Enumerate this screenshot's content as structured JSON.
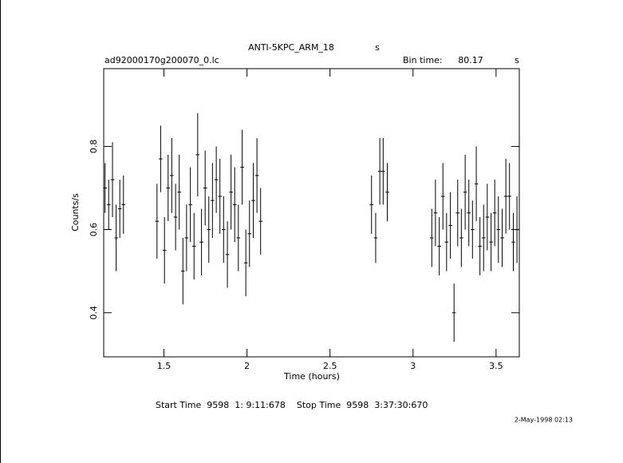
{
  "chart_data": {
    "type": "errorbar",
    "title": "ANTI-5KPC_ARM_18",
    "title_unit": "s",
    "file_name": "ad92000170g200070_0.lc",
    "bin_time_label": "Bin time:",
    "bin_time": 80.17,
    "bin_time_unit": "s",
    "x_label": "Time (hours)",
    "y_label": "Counts/s",
    "footer": "Start Time  9598  1: 9:11:678    Stop Time  9598  3:37:30:670",
    "date_stamp": "2-May-1998 02:13",
    "xlim": [
      1.137,
      3.64
    ],
    "ylim": [
      0.294,
      0.987
    ],
    "xticks": [
      1.5,
      2,
      2.5,
      3,
      3.5
    ],
    "yticks": [
      0.4,
      0.6,
      0.8
    ],
    "color": "#000000",
    "x": [
      1.145,
      1.167,
      1.19,
      1.212,
      1.234,
      1.256,
      1.458,
      1.48,
      1.503,
      1.525,
      1.547,
      1.57,
      1.592,
      1.614,
      1.636,
      1.659,
      1.681,
      1.703,
      1.726,
      1.748,
      1.77,
      1.792,
      1.815,
      1.837,
      1.859,
      1.882,
      1.904,
      1.926,
      1.948,
      1.971,
      1.993,
      2.015,
      2.038,
      2.06,
      2.082,
      2.75,
      2.775,
      2.8,
      2.82,
      2.845,
      3.113,
      3.135,
      3.158,
      3.18,
      3.202,
      3.225,
      3.247,
      3.269,
      3.291,
      3.314,
      3.336,
      3.358,
      3.381,
      3.403,
      3.425,
      3.447,
      3.47,
      3.492,
      3.514,
      3.537,
      3.559,
      3.581,
      3.604,
      3.626
    ],
    "values": [
      0.7,
      0.66,
      0.72,
      0.58,
      0.65,
      0.66,
      0.62,
      0.77,
      0.55,
      0.7,
      0.73,
      0.63,
      0.69,
      0.5,
      0.58,
      0.66,
      0.56,
      0.78,
      0.57,
      0.7,
      0.6,
      0.67,
      0.72,
      0.68,
      0.6,
      0.54,
      0.69,
      0.66,
      0.58,
      0.75,
      0.52,
      0.59,
      0.67,
      0.73,
      0.62,
      0.66,
      0.58,
      0.74,
      0.74,
      0.69,
      0.58,
      0.64,
      0.56,
      0.68,
      0.57,
      0.61,
      0.4,
      0.64,
      0.58,
      0.69,
      0.64,
      0.6,
      0.71,
      0.56,
      0.58,
      0.63,
      0.57,
      0.64,
      0.6,
      0.58,
      0.68,
      0.68,
      0.57,
      0.6
    ],
    "errors": [
      0.06,
      0.06,
      0.09,
      0.08,
      0.07,
      0.07,
      0.09,
      0.08,
      0.08,
      0.08,
      0.09,
      0.08,
      0.09,
      0.08,
      0.08,
      0.09,
      0.08,
      0.1,
      0.08,
      0.09,
      0.08,
      0.09,
      0.08,
      0.09,
      0.08,
      0.08,
      0.09,
      0.09,
      0.08,
      0.09,
      0.08,
      0.08,
      0.09,
      0.09,
      0.08,
      0.07,
      0.06,
      0.08,
      0.08,
      0.07,
      0.07,
      0.08,
      0.07,
      0.08,
      0.07,
      0.08,
      0.07,
      0.08,
      0.07,
      0.09,
      0.08,
      0.07,
      0.09,
      0.07,
      0.08,
      0.08,
      0.07,
      0.08,
      0.08,
      0.07,
      0.09,
      0.08,
      0.07,
      0.08
    ]
  }
}
